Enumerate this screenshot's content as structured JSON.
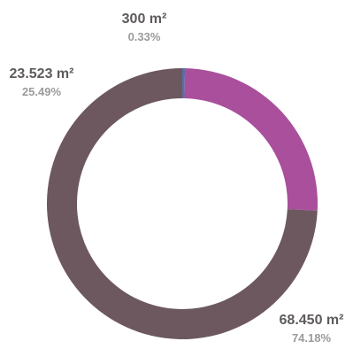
{
  "chart_data": {
    "type": "pie",
    "variant": "donut",
    "title": "",
    "series": [
      {
        "value": 300,
        "value_label": "300 m²",
        "percent_label": "0.33%",
        "percent": 0.33,
        "color": "#5b6ea6"
      },
      {
        "value": 23523,
        "value_label": "23.523 m²",
        "percent_label": "25.49%",
        "percent": 25.49,
        "color": "#a94f9b"
      },
      {
        "value": 68450,
        "value_label": "68.450 m²",
        "percent_label": "74.18%",
        "percent": 74.18,
        "color": "#6c585e"
      }
    ],
    "legend": "none"
  }
}
